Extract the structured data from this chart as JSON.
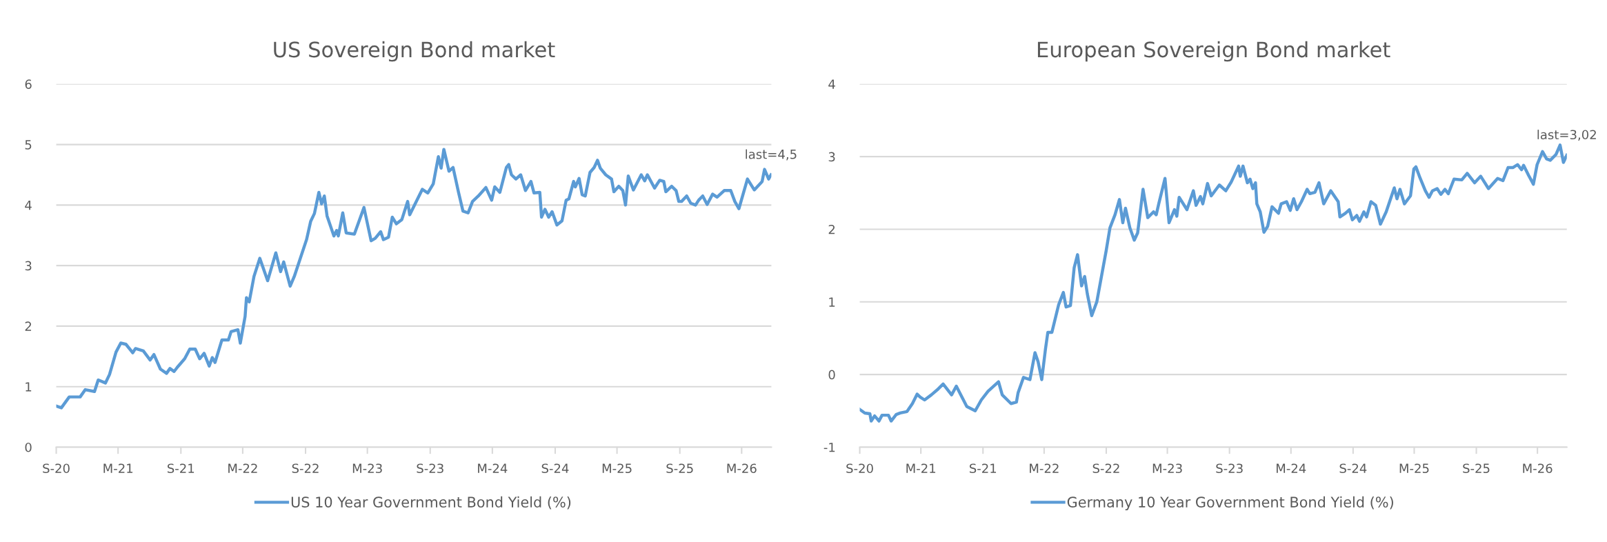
{
  "chart_data": [
    {
      "type": "line",
      "title": "US Sovereign Bond market",
      "legend": "bottom",
      "grid": "y",
      "line_style": "solid",
      "marker": "none",
      "xlim": [
        "2020-09-01",
        "2026-05-27"
      ],
      "xticks": [
        {
          "value": "2020-09-01",
          "label": "S-20"
        },
        {
          "value": "2021-03-01",
          "label": "M-21"
        },
        {
          "value": "2021-09-01",
          "label": "S-21"
        },
        {
          "value": "2022-03-01",
          "label": "M-22"
        },
        {
          "value": "2022-09-01",
          "label": "S-22"
        },
        {
          "value": "2023-03-01",
          "label": "M-23"
        },
        {
          "value": "2023-09-01",
          "label": "S-23"
        },
        {
          "value": "2024-03-01",
          "label": "M-24"
        },
        {
          "value": "2024-09-01",
          "label": "S-24"
        },
        {
          "value": "2025-03-01",
          "label": "M-25"
        },
        {
          "value": "2025-09-01",
          "label": "S-25"
        },
        {
          "value": "2026-03-01",
          "label": "M-26"
        }
      ],
      "ylim": [
        0,
        6
      ],
      "yticks": [
        0,
        1,
        2,
        3,
        4,
        5,
        6
      ],
      "annotations": [
        {
          "text": "last=4,5",
          "x": "2026-05-26",
          "y": 4.5
        }
      ],
      "series": [
        {
          "name": "US 10 Year Government Bond Yield (%)",
          "color": "#5b9bd5",
          "x": [
            "2020-09-01",
            "2020-09-16",
            "2020-10-09",
            "2020-11-10",
            "2020-11-25",
            "2020-12-22",
            "2021-01-02",
            "2021-01-23",
            "2021-02-04",
            "2021-02-23",
            "2021-03-09",
            "2021-03-24",
            "2021-04-13",
            "2021-04-21",
            "2021-05-14",
            "2021-06-03",
            "2021-06-14",
            "2021-07-03",
            "2021-07-21",
            "2021-07-31",
            "2021-08-12",
            "2021-08-23",
            "2021-09-12",
            "2021-09-27",
            "2021-10-13",
            "2021-10-26",
            "2021-11-08",
            "2021-11-23",
            "2021-12-02",
            "2021-12-10",
            "2021-12-30",
            "2022-01-18",
            "2022-01-26",
            "2022-02-15",
            "2022-02-22",
            "2022-03-08",
            "2022-03-12",
            "2022-03-20",
            "2022-04-03",
            "2022-04-20",
            "2022-05-13",
            "2022-06-06",
            "2022-06-20",
            "2022-06-29",
            "2022-07-18",
            "2022-07-30",
            "2022-09-04",
            "2022-09-16",
            "2022-09-27",
            "2022-10-10",
            "2022-10-18",
            "2022-10-26",
            "2022-11-03",
            "2022-11-23",
            "2022-12-01",
            "2022-12-06",
            "2022-12-19",
            "2022-12-29",
            "2023-01-22",
            "2023-02-19",
            "2023-03-12",
            "2023-03-24",
            "2023-04-09",
            "2023-04-17",
            "2023-05-02",
            "2023-05-13",
            "2023-05-25",
            "2023-06-10",
            "2023-06-27",
            "2023-07-03",
            "2023-08-09",
            "2023-08-25",
            "2023-09-10",
            "2023-09-25",
            "2023-10-03",
            "2023-10-11",
            "2023-10-26",
            "2023-11-07",
            "2023-11-23",
            "2023-12-06",
            "2023-12-21",
            "2024-01-03",
            "2024-01-20",
            "2024-02-11",
            "2024-02-28",
            "2024-03-08",
            "2024-03-23",
            "2024-04-11",
            "2024-04-18",
            "2024-04-26",
            "2024-05-09",
            "2024-05-23",
            "2024-06-06",
            "2024-06-22",
            "2024-07-01",
            "2024-07-18",
            "2024-07-23",
            "2024-08-02",
            "2024-08-13",
            "2024-08-23",
            "2024-09-06",
            "2024-09-21",
            "2024-10-03",
            "2024-10-11",
            "2024-10-25",
            "2024-10-30",
            "2024-11-10",
            "2024-11-19",
            "2024-11-28",
            "2024-12-12",
            "2024-12-24",
            "2025-01-03",
            "2025-01-11",
            "2025-01-27",
            "2025-02-13",
            "2025-02-20",
            "2025-03-06",
            "2025-03-18",
            "2025-03-26",
            "2025-04-03",
            "2025-04-18",
            "2025-05-11",
            "2025-05-21",
            "2025-05-29",
            "2025-06-19",
            "2025-07-04",
            "2025-07-16",
            "2025-07-22",
            "2025-08-08",
            "2025-08-21",
            "2025-08-29",
            "2025-09-06",
            "2025-09-21",
            "2025-10-03",
            "2025-10-17",
            "2025-10-26",
            "2025-11-07",
            "2025-11-20",
            "2025-12-06",
            "2025-12-19",
            "2026-01-09",
            "2026-01-28",
            "2026-02-09",
            "2026-02-21",
            "2026-03-18",
            "2026-04-07",
            "2026-04-30",
            "2026-05-07",
            "2026-05-19",
            "2026-05-26"
          ],
          "values": [
            0.68,
            0.65,
            0.83,
            0.83,
            0.95,
            0.92,
            1.11,
            1.06,
            1.2,
            1.57,
            1.72,
            1.7,
            1.56,
            1.63,
            1.59,
            1.44,
            1.53,
            1.29,
            1.22,
            1.3,
            1.25,
            1.33,
            1.46,
            1.62,
            1.62,
            1.46,
            1.55,
            1.34,
            1.48,
            1.4,
            1.77,
            1.77,
            1.91,
            1.94,
            1.72,
            2.16,
            2.47,
            2.4,
            2.82,
            3.12,
            2.75,
            3.21,
            2.9,
            3.06,
            2.66,
            2.82,
            3.43,
            3.73,
            3.86,
            4.21,
            4.02,
            4.15,
            3.82,
            3.49,
            3.58,
            3.49,
            3.87,
            3.54,
            3.52,
            3.96,
            3.41,
            3.45,
            3.56,
            3.43,
            3.47,
            3.8,
            3.69,
            3.76,
            4.06,
            3.84,
            4.26,
            4.2,
            4.35,
            4.8,
            4.61,
            4.92,
            4.56,
            4.62,
            4.21,
            3.9,
            3.87,
            4.06,
            4.15,
            4.29,
            4.08,
            4.3,
            4.21,
            4.62,
            4.67,
            4.5,
            4.43,
            4.5,
            4.24,
            4.39,
            4.2,
            4.21,
            3.8,
            3.93,
            3.8,
            3.89,
            3.67,
            3.74,
            4.08,
            4.1,
            4.39,
            4.3,
            4.44,
            4.17,
            4.15,
            4.54,
            4.62,
            4.74,
            4.61,
            4.5,
            4.43,
            4.22,
            4.31,
            4.24,
            4.0,
            4.48,
            4.25,
            4.5,
            4.4,
            4.5,
            4.28,
            4.41,
            4.39,
            4.22,
            4.31,
            4.24,
            4.06,
            4.06,
            4.15,
            4.03,
            4.0,
            4.08,
            4.15,
            4.01,
            4.18,
            4.13,
            4.24,
            4.24,
            4.06,
            3.94,
            4.43,
            4.25,
            4.39,
            4.59,
            4.43,
            4.5
          ]
        }
      ]
    },
    {
      "type": "line",
      "title": "European Sovereign Bond market",
      "legend": "bottom",
      "grid": "y",
      "line_style": "solid",
      "marker": "none",
      "xlim": [
        "2020-09-01",
        "2026-05-27"
      ],
      "xticks": [
        {
          "value": "2020-09-01",
          "label": "S-20"
        },
        {
          "value": "2021-03-01",
          "label": "M-21"
        },
        {
          "value": "2021-09-01",
          "label": "S-21"
        },
        {
          "value": "2022-03-01",
          "label": "M-22"
        },
        {
          "value": "2022-09-01",
          "label": "S-22"
        },
        {
          "value": "2023-03-01",
          "label": "M-23"
        },
        {
          "value": "2023-09-01",
          "label": "S-23"
        },
        {
          "value": "2024-03-01",
          "label": "M-24"
        },
        {
          "value": "2024-09-01",
          "label": "S-24"
        },
        {
          "value": "2025-03-01",
          "label": "M-25"
        },
        {
          "value": "2025-09-01",
          "label": "S-25"
        },
        {
          "value": "2026-03-01",
          "label": "M-26"
        }
      ],
      "ylim": [
        -1,
        4
      ],
      "yticks": [
        -1,
        0,
        1,
        2,
        3,
        4
      ],
      "annotations": [
        {
          "text": "last=3,02",
          "x": "2026-05-27",
          "y": 3.02
        }
      ],
      "series": [
        {
          "name": "Germany 10 Year Government Bond Yield (%)",
          "color": "#5b9bd5",
          "x": [
            "2020-09-01",
            "2020-09-16",
            "2020-10-01",
            "2020-10-05",
            "2020-10-15",
            "2020-10-28",
            "2020-11-06",
            "2020-11-25",
            "2020-12-03",
            "2020-12-18",
            "2020-12-30",
            "2021-01-19",
            "2021-02-04",
            "2021-02-18",
            "2021-02-27",
            "2021-03-12",
            "2021-04-01",
            "2021-04-21",
            "2021-05-06",
            "2021-05-31",
            "2021-06-14",
            "2021-07-15",
            "2021-08-09",
            "2021-08-27",
            "2021-09-16",
            "2021-10-17",
            "2021-10-28",
            "2021-11-23",
            "2021-12-09",
            "2021-12-14",
            "2021-12-30",
            "2022-01-18",
            "2022-02-02",
            "2022-02-11",
            "2022-02-22",
            "2022-03-05",
            "2022-03-12",
            "2022-03-24",
            "2022-04-13",
            "2022-04-27",
            "2022-05-05",
            "2022-05-18",
            "2022-05-29",
            "2022-06-08",
            "2022-06-20",
            "2022-06-29",
            "2022-07-07",
            "2022-07-20",
            "2022-08-04",
            "2022-09-01",
            "2022-09-12",
            "2022-09-27",
            "2022-10-10",
            "2022-10-20",
            "2022-10-28",
            "2022-11-10",
            "2022-11-23",
            "2022-12-03",
            "2022-12-19",
            "2023-01-02",
            "2023-01-19",
            "2023-01-27",
            "2023-02-04",
            "2023-02-22",
            "2023-03-06",
            "2023-03-22",
            "2023-03-29",
            "2023-04-05",
            "2023-04-28",
            "2023-05-17",
            "2023-05-25",
            "2023-06-07",
            "2023-06-14",
            "2023-06-28",
            "2023-07-09",
            "2023-08-02",
            "2023-08-21",
            "2023-09-06",
            "2023-09-28",
            "2023-10-03",
            "2023-10-11",
            "2023-10-24",
            "2023-11-01",
            "2023-11-09",
            "2023-11-17",
            "2023-11-21",
            "2023-12-01",
            "2023-12-12",
            "2023-12-23",
            "2024-01-05",
            "2024-01-24",
            "2024-02-01",
            "2024-02-17",
            "2024-02-28",
            "2024-03-09",
            "2024-03-19",
            "2024-04-01",
            "2024-04-18",
            "2024-04-26",
            "2024-05-11",
            "2024-05-23",
            "2024-06-06",
            "2024-06-27",
            "2024-07-19",
            "2024-07-24",
            "2024-08-09",
            "2024-08-21",
            "2024-08-30",
            "2024-09-12",
            "2024-09-20",
            "2024-10-03",
            "2024-10-11",
            "2024-10-24",
            "2024-11-07",
            "2024-11-21",
            "2024-12-08",
            "2025-01-01",
            "2025-01-09",
            "2025-01-18",
            "2025-01-31",
            "2025-02-18",
            "2025-02-28",
            "2025-03-06",
            "2025-03-18",
            "2025-04-03",
            "2025-04-14",
            "2025-04-24",
            "2025-05-08",
            "2025-05-19",
            "2025-05-31",
            "2025-06-10",
            "2025-06-27",
            "2025-07-20",
            "2025-08-05",
            "2025-08-27",
            "2025-09-14",
            "2025-10-07",
            "2025-11-03",
            "2025-11-19",
            "2025-12-04",
            "2025-12-19",
            "2026-01-01",
            "2026-01-13",
            "2026-01-19",
            "2026-02-03",
            "2026-02-17",
            "2026-02-28",
            "2026-03-16",
            "2026-03-28",
            "2026-04-08",
            "2026-04-25",
            "2026-05-07",
            "2026-05-17",
            "2026-05-27"
          ],
          "values": [
            -0.48,
            -0.53,
            -0.54,
            -0.64,
            -0.57,
            -0.64,
            -0.56,
            -0.56,
            -0.64,
            -0.55,
            -0.53,
            -0.51,
            -0.4,
            -0.27,
            -0.31,
            -0.35,
            -0.28,
            -0.2,
            -0.13,
            -0.28,
            -0.16,
            -0.44,
            -0.5,
            -0.35,
            -0.23,
            -0.1,
            -0.28,
            -0.4,
            -0.38,
            -0.25,
            -0.04,
            -0.07,
            0.3,
            0.18,
            -0.07,
            0.35,
            0.58,
            0.58,
            0.96,
            1.13,
            0.93,
            0.95,
            1.47,
            1.65,
            1.22,
            1.35,
            1.11,
            0.81,
            1.0,
            1.71,
            2.02,
            2.2,
            2.41,
            2.09,
            2.29,
            2.02,
            1.85,
            1.95,
            2.55,
            2.16,
            2.24,
            2.2,
            2.36,
            2.7,
            2.09,
            2.27,
            2.18,
            2.44,
            2.27,
            2.53,
            2.33,
            2.45,
            2.35,
            2.63,
            2.46,
            2.61,
            2.53,
            2.65,
            2.87,
            2.73,
            2.87,
            2.64,
            2.69,
            2.56,
            2.64,
            2.35,
            2.24,
            1.96,
            2.04,
            2.31,
            2.22,
            2.35,
            2.38,
            2.26,
            2.42,
            2.27,
            2.38,
            2.55,
            2.49,
            2.51,
            2.64,
            2.35,
            2.53,
            2.38,
            2.17,
            2.22,
            2.27,
            2.13,
            2.19,
            2.11,
            2.24,
            2.17,
            2.38,
            2.33,
            2.07,
            2.24,
            2.57,
            2.42,
            2.55,
            2.35,
            2.46,
            2.83,
            2.86,
            2.71,
            2.53,
            2.44,
            2.53,
            2.56,
            2.48,
            2.55,
            2.49,
            2.69,
            2.68,
            2.77,
            2.64,
            2.73,
            2.56,
            2.7,
            2.67,
            2.85,
            2.85,
            2.89,
            2.82,
            2.88,
            2.74,
            2.62,
            2.89,
            3.07,
            2.97,
            2.95,
            3.03,
            3.16,
            2.92,
            3.02
          ]
        }
      ]
    }
  ]
}
